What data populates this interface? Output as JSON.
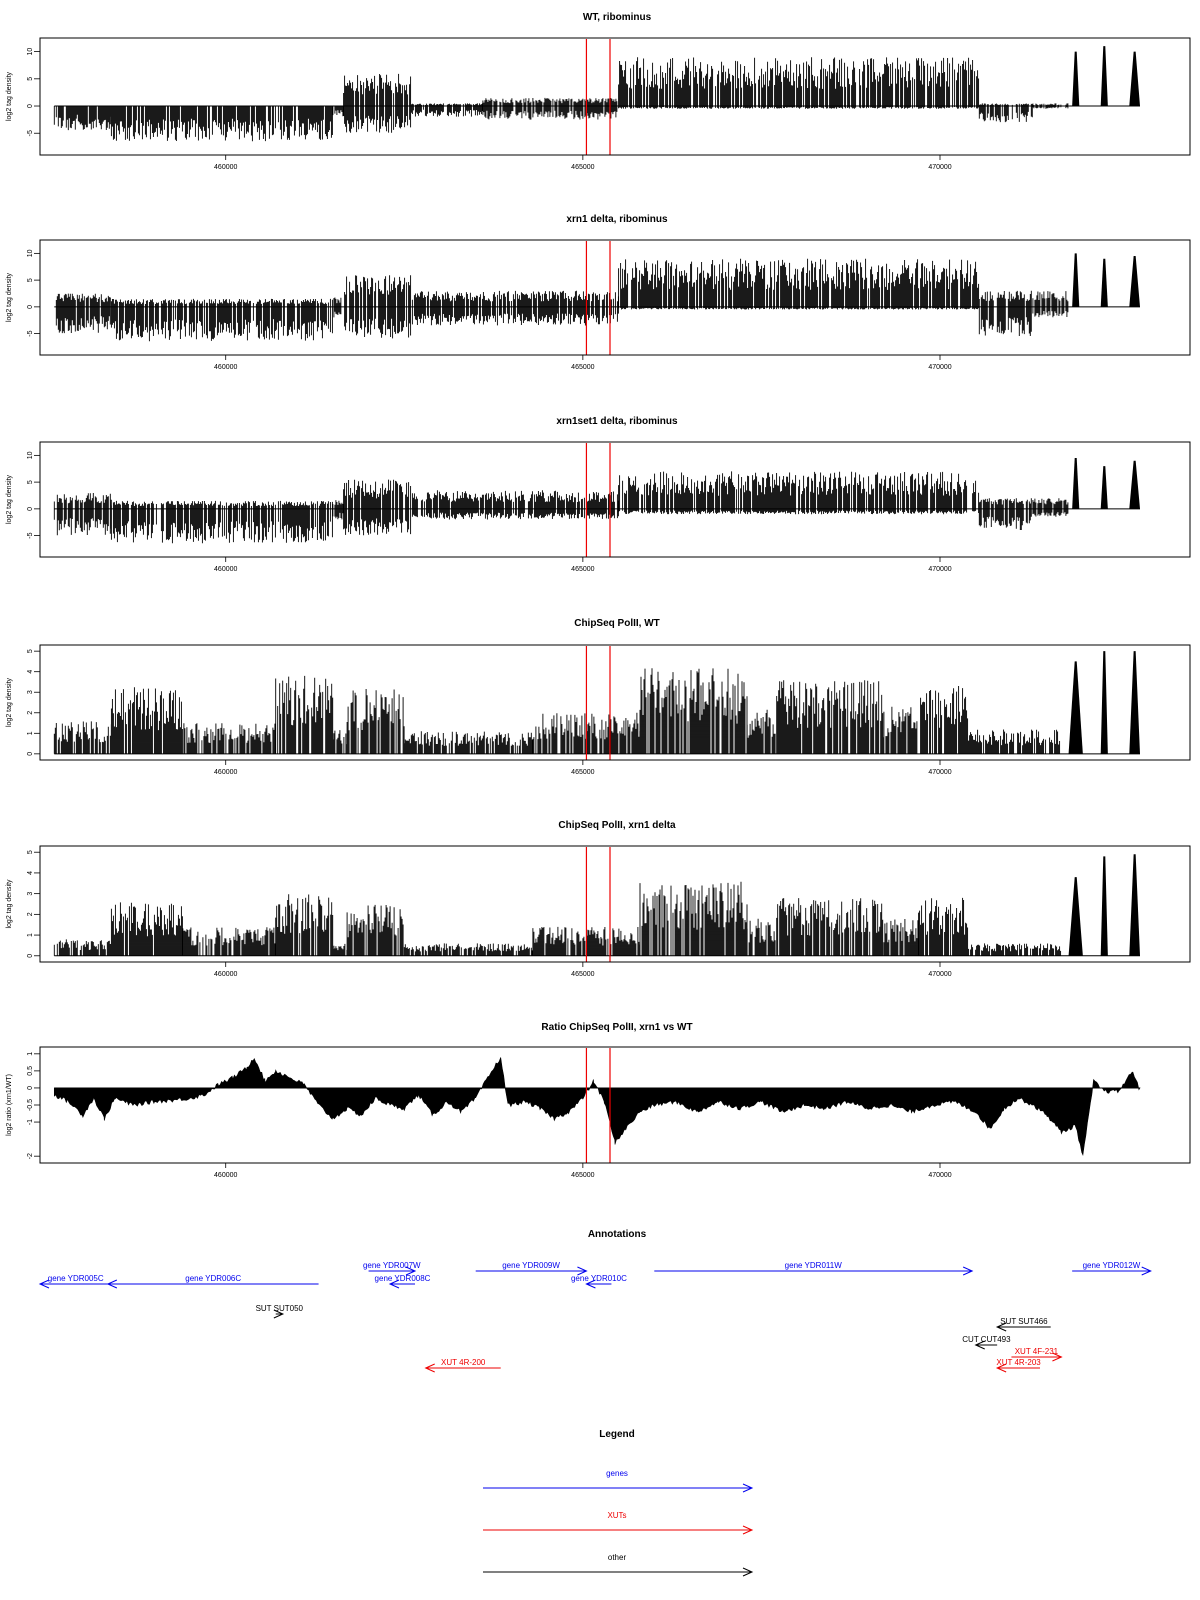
{
  "colors": {
    "gene": "#0000ee",
    "xut": "#ee0000",
    "other": "#000000",
    "marker": "#ee0000",
    "signal": "#000000"
  },
  "chart_data": [
    {
      "type": "bar",
      "title": "WT, ribominus",
      "ylabel": "log2 tag density",
      "xlim": [
        457400,
        473500
      ],
      "ylim": [
        -9,
        12.5
      ],
      "yticks": [
        -5,
        0,
        5,
        10
      ],
      "xticks": [
        460000,
        465000,
        470000
      ],
      "markers": [
        465050,
        465380
      ],
      "profile": [
        {
          "x": [
            457600,
            458400
          ],
          "pos": 0,
          "neg": 4.5
        },
        {
          "x": [
            458400,
            461500
          ],
          "pos": 0,
          "neg": 6.5
        },
        {
          "x": [
            461500,
            461650
          ],
          "pos": 0,
          "neg": 2
        },
        {
          "x": [
            461650,
            462600
          ],
          "pos": 6,
          "neg": 5
        },
        {
          "x": [
            462600,
            463600
          ],
          "pos": 0.5,
          "neg": 2
        },
        {
          "x": [
            463600,
            465500
          ],
          "pos": 1.5,
          "neg": 2.5
        },
        {
          "x": [
            465500,
            470550
          ],
          "pos": 9,
          "neg": 0.5
        },
        {
          "x": [
            470550,
            471300
          ],
          "pos": 0.5,
          "neg": 3
        },
        {
          "x": [
            471300,
            471800
          ],
          "pos": 0.5,
          "neg": 0.5
        }
      ],
      "peaks": [
        [
          471850,
          471950,
          10
        ],
        [
          472250,
          472350,
          11
        ],
        [
          472650,
          472800,
          10
        ]
      ]
    },
    {
      "type": "bar",
      "title": "xrn1 delta, ribominus",
      "ylabel": "log2 tag density",
      "xlim": [
        457400,
        473500
      ],
      "ylim": [
        -9,
        12.5
      ],
      "yticks": [
        -5,
        0,
        5,
        10
      ],
      "xticks": [
        460000,
        465000,
        470000
      ],
      "markers": [
        465050,
        465380
      ],
      "profile": [
        {
          "x": [
            457600,
            458400
          ],
          "pos": 2.5,
          "neg": 5
        },
        {
          "x": [
            458400,
            461500
          ],
          "pos": 1.5,
          "neg": 6.5
        },
        {
          "x": [
            461500,
            461650
          ],
          "pos": 2,
          "neg": 2
        },
        {
          "x": [
            461650,
            462600
          ],
          "pos": 6,
          "neg": 6
        },
        {
          "x": [
            462600,
            465500
          ],
          "pos": 3,
          "neg": 3.5
        },
        {
          "x": [
            465500,
            470550
          ],
          "pos": 9,
          "neg": 0.5
        },
        {
          "x": [
            470550,
            471300
          ],
          "pos": 3,
          "neg": 5.5
        },
        {
          "x": [
            471300,
            471800
          ],
          "pos": 3,
          "neg": 2
        }
      ],
      "peaks": [
        [
          471850,
          471950,
          10
        ],
        [
          472250,
          472350,
          9
        ],
        [
          472650,
          472800,
          9.5
        ]
      ]
    },
    {
      "type": "bar",
      "title": "xrn1set1 delta, ribominus",
      "ylabel": "log2 tag density",
      "xlim": [
        457400,
        473500
      ],
      "ylim": [
        -9,
        12.5
      ],
      "yticks": [
        -5,
        0,
        5,
        10
      ],
      "xticks": [
        460000,
        465000,
        470000
      ],
      "markers": [
        465050,
        465380
      ],
      "profile": [
        {
          "x": [
            457600,
            458400
          ],
          "pos": 3,
          "neg": 5
        },
        {
          "x": [
            458400,
            461500
          ],
          "pos": 1.5,
          "neg": 6.5
        },
        {
          "x": [
            461500,
            461650
          ],
          "pos": 2,
          "neg": 2
        },
        {
          "x": [
            461650,
            462600
          ],
          "pos": 5.5,
          "neg": 5
        },
        {
          "x": [
            462600,
            465500
          ],
          "pos": 3.5,
          "neg": 2
        },
        {
          "x": [
            465500,
            470550
          ],
          "pos": 7,
          "neg": 1
        },
        {
          "x": [
            470550,
            471300
          ],
          "pos": 2,
          "neg": 4
        },
        {
          "x": [
            471300,
            471800
          ],
          "pos": 2,
          "neg": 1.5
        }
      ],
      "peaks": [
        [
          471850,
          471950,
          9.5
        ],
        [
          472250,
          472350,
          8
        ],
        [
          472650,
          472800,
          9
        ]
      ]
    },
    {
      "type": "bar",
      "title": "ChipSeq PolII, WT",
      "ylabel": "log2 tag density",
      "xlim": [
        457400,
        473500
      ],
      "ylim": [
        -0.3,
        5.3
      ],
      "yticks": [
        0,
        1,
        2,
        3,
        4,
        5
      ],
      "xticks": [
        460000,
        465000,
        470000
      ],
      "markers": [
        465050,
        465380
      ],
      "profile": [
        {
          "x": [
            457600,
            458400
          ],
          "pos": 1.6,
          "neg": 0
        },
        {
          "x": [
            458400,
            459400
          ],
          "pos": 3.3,
          "neg": 0
        },
        {
          "x": [
            459400,
            460700
          ],
          "pos": 1.5,
          "neg": 0
        },
        {
          "x": [
            460700,
            461500
          ],
          "pos": 3.8,
          "neg": 0
        },
        {
          "x": [
            461500,
            461700
          ],
          "pos": 1.2,
          "neg": 0
        },
        {
          "x": [
            461700,
            462500
          ],
          "pos": 3.2,
          "neg": 0
        },
        {
          "x": [
            462500,
            464300
          ],
          "pos": 1.1,
          "neg": 0
        },
        {
          "x": [
            464300,
            465800
          ],
          "pos": 2,
          "neg": 0
        },
        {
          "x": [
            465800,
            467300
          ],
          "pos": 4.2,
          "neg": 0
        },
        {
          "x": [
            467300,
            467700
          ],
          "pos": 2.2,
          "neg": 0
        },
        {
          "x": [
            467700,
            469200
          ],
          "pos": 3.6,
          "neg": 0
        },
        {
          "x": [
            469200,
            469700
          ],
          "pos": 2.3,
          "neg": 0
        },
        {
          "x": [
            469700,
            470400
          ],
          "pos": 3.5,
          "neg": 0
        },
        {
          "x": [
            470400,
            471700
          ],
          "pos": 1.2,
          "neg": 0
        }
      ],
      "peaks": [
        [
          471800,
          472000,
          4.5
        ],
        [
          472250,
          472350,
          5
        ],
        [
          472650,
          472800,
          5
        ]
      ]
    },
    {
      "type": "bar",
      "title": "ChipSeq PolII, xrn1 delta",
      "ylabel": "log2 tag density",
      "xlim": [
        457400,
        473500
      ],
      "ylim": [
        -0.3,
        5.3
      ],
      "yticks": [
        0,
        1,
        2,
        3,
        4,
        5
      ],
      "xticks": [
        460000,
        465000,
        470000
      ],
      "markers": [
        465050,
        465380
      ],
      "profile": [
        {
          "x": [
            457600,
            458400
          ],
          "pos": 0.8,
          "neg": 0
        },
        {
          "x": [
            458400,
            459400
          ],
          "pos": 2.6,
          "neg": 0
        },
        {
          "x": [
            459400,
            460700
          ],
          "pos": 1.4,
          "neg": 0
        },
        {
          "x": [
            460700,
            461500
          ],
          "pos": 3,
          "neg": 0
        },
        {
          "x": [
            461500,
            461700
          ],
          "pos": 0.6,
          "neg": 0
        },
        {
          "x": [
            461700,
            462500
          ],
          "pos": 2.5,
          "neg": 0
        },
        {
          "x": [
            462500,
            464300
          ],
          "pos": 0.6,
          "neg": 0
        },
        {
          "x": [
            464300,
            465800
          ],
          "pos": 1.4,
          "neg": 0
        },
        {
          "x": [
            465800,
            467300
          ],
          "pos": 3.6,
          "neg": 0
        },
        {
          "x": [
            467300,
            467700
          ],
          "pos": 1.8,
          "neg": 0
        },
        {
          "x": [
            467700,
            469200
          ],
          "pos": 2.8,
          "neg": 0
        },
        {
          "x": [
            469200,
            469700
          ],
          "pos": 1.8,
          "neg": 0
        },
        {
          "x": [
            469700,
            470400
          ],
          "pos": 2.8,
          "neg": 0
        },
        {
          "x": [
            470400,
            471700
          ],
          "pos": 0.6,
          "neg": 0
        }
      ],
      "peaks": [
        [
          471800,
          472000,
          3.8
        ],
        [
          472250,
          472350,
          4.8
        ],
        [
          472650,
          472800,
          4.9
        ]
      ]
    },
    {
      "type": "area",
      "title": "Ratio ChipSeq PolII, xrn1 vs WT",
      "ylabel": "log2 ratio (xrn1/WT)",
      "xlim": [
        457400,
        473500
      ],
      "ylim": [
        -2.2,
        1.2
      ],
      "yticks": [
        -2.0,
        -1.0,
        -0.5,
        0.0,
        0.5,
        1.0
      ],
      "xticks": [
        460000,
        465000,
        470000
      ],
      "markers": [
        465050,
        465380
      ],
      "curve": [
        [
          457600,
          -0.2
        ],
        [
          457800,
          -0.4
        ],
        [
          458000,
          -0.8
        ],
        [
          458150,
          -0.3
        ],
        [
          458300,
          -0.9
        ],
        [
          458450,
          -0.3
        ],
        [
          458700,
          -0.5
        ],
        [
          459000,
          -0.4
        ],
        [
          459300,
          -0.35
        ],
        [
          459500,
          -0.3
        ],
        [
          459700,
          -0.2
        ],
        [
          459900,
          0.1
        ],
        [
          460100,
          0.3
        ],
        [
          460300,
          0.6
        ],
        [
          460400,
          0.9
        ],
        [
          460550,
          0.2
        ],
        [
          460700,
          0.5
        ],
        [
          460900,
          0.3
        ],
        [
          461100,
          0.1
        ],
        [
          461300,
          -0.5
        ],
        [
          461500,
          -0.9
        ],
        [
          461700,
          -0.6
        ],
        [
          461900,
          -0.8
        ],
        [
          462100,
          -0.3
        ],
        [
          462300,
          -0.5
        ],
        [
          462500,
          -0.6
        ],
        [
          462700,
          -0.2
        ],
        [
          462900,
          -0.8
        ],
        [
          463100,
          -0.4
        ],
        [
          463300,
          -0.7
        ],
        [
          463500,
          -0.3
        ],
        [
          463700,
          0.4
        ],
        [
          463850,
          0.9
        ],
        [
          463950,
          -0.5
        ],
        [
          464200,
          -0.4
        ],
        [
          464400,
          -0.6
        ],
        [
          464600,
          -0.9
        ],
        [
          464800,
          -0.7
        ],
        [
          465000,
          -0.3
        ],
        [
          465150,
          0.2
        ],
        [
          465300,
          -0.4
        ],
        [
          465450,
          -1.6
        ],
        [
          465600,
          -1.2
        ],
        [
          465800,
          -0.7
        ],
        [
          466000,
          -0.5
        ],
        [
          466300,
          -0.4
        ],
        [
          466600,
          -0.7
        ],
        [
          466900,
          -0.4
        ],
        [
          467200,
          -0.6
        ],
        [
          467500,
          -0.4
        ],
        [
          467800,
          -0.7
        ],
        [
          468100,
          -0.5
        ],
        [
          468400,
          -0.6
        ],
        [
          468700,
          -0.4
        ],
        [
          469000,
          -0.6
        ],
        [
          469300,
          -0.5
        ],
        [
          469600,
          -0.7
        ],
        [
          469900,
          -0.5
        ],
        [
          470200,
          -0.4
        ],
        [
          470500,
          -0.7
        ],
        [
          470700,
          -1.2
        ],
        [
          470900,
          -0.6
        ],
        [
          471100,
          -0.3
        ],
        [
          471300,
          -0.5
        ],
        [
          471500,
          -0.8
        ],
        [
          471700,
          -1.3
        ],
        [
          471900,
          -1.1
        ],
        [
          472000,
          -2.0
        ],
        [
          472150,
          0.2
        ],
        [
          472300,
          -0.1
        ],
        [
          472500,
          -0.1
        ],
        [
          472700,
          0.5
        ],
        [
          472800,
          -0.1
        ]
      ]
    }
  ],
  "annotations": {
    "title": "Annotations",
    "features": [
      {
        "label": "gene YDR005C",
        "class": "gene",
        "start": 457400,
        "end": 458400,
        "dir": "left",
        "row": 1
      },
      {
        "label": "gene YDR006C",
        "class": "gene",
        "start": 458350,
        "end": 461300,
        "dir": "left",
        "row": 1
      },
      {
        "label": "gene YDR007W",
        "class": "gene",
        "start": 462000,
        "end": 462650,
        "dir": "right",
        "row": 0
      },
      {
        "label": "gene YDR008C",
        "class": "gene",
        "start": 462300,
        "end": 462650,
        "dir": "left",
        "row": 1
      },
      {
        "label": "gene YDR009W",
        "class": "gene",
        "start": 463500,
        "end": 465050,
        "dir": "right",
        "row": 0
      },
      {
        "label": "gene YDR010C",
        "class": "gene",
        "start": 465050,
        "end": 465400,
        "dir": "left",
        "row": 1
      },
      {
        "label": "gene YDR011W",
        "class": "gene",
        "start": 466000,
        "end": 470450,
        "dir": "right",
        "row": 0
      },
      {
        "label": "gene YDR012W",
        "class": "gene",
        "start": 471850,
        "end": 472950,
        "dir": "right",
        "row": 0
      },
      {
        "label": "SUT SUT050",
        "class": "other",
        "start": 460700,
        "end": 460800,
        "dir": "right",
        "row": 3
      },
      {
        "label": "SUT SUT466",
        "class": "other",
        "start": 470800,
        "end": 471550,
        "dir": "left",
        "row": 4
      },
      {
        "label": "CUT CUT493",
        "class": "other",
        "start": 470500,
        "end": 470800,
        "dir": "left",
        "row": 5
      },
      {
        "label": "XUT 4F-231",
        "class": "xut",
        "start": 471000,
        "end": 471700,
        "dir": "right",
        "row": 6
      },
      {
        "label": "XUT 4R-203",
        "class": "xut",
        "start": 470800,
        "end": 471400,
        "dir": "left",
        "row": 7
      },
      {
        "label": "XUT 4R-200",
        "class": "xut",
        "start": 462800,
        "end": 463850,
        "dir": "left",
        "row": 7
      }
    ]
  },
  "legend": {
    "title": "Legend",
    "items": [
      {
        "label": "genes",
        "class": "gene"
      },
      {
        "label": "XUTs",
        "class": "xut"
      },
      {
        "label": "other",
        "class": "other"
      }
    ]
  }
}
